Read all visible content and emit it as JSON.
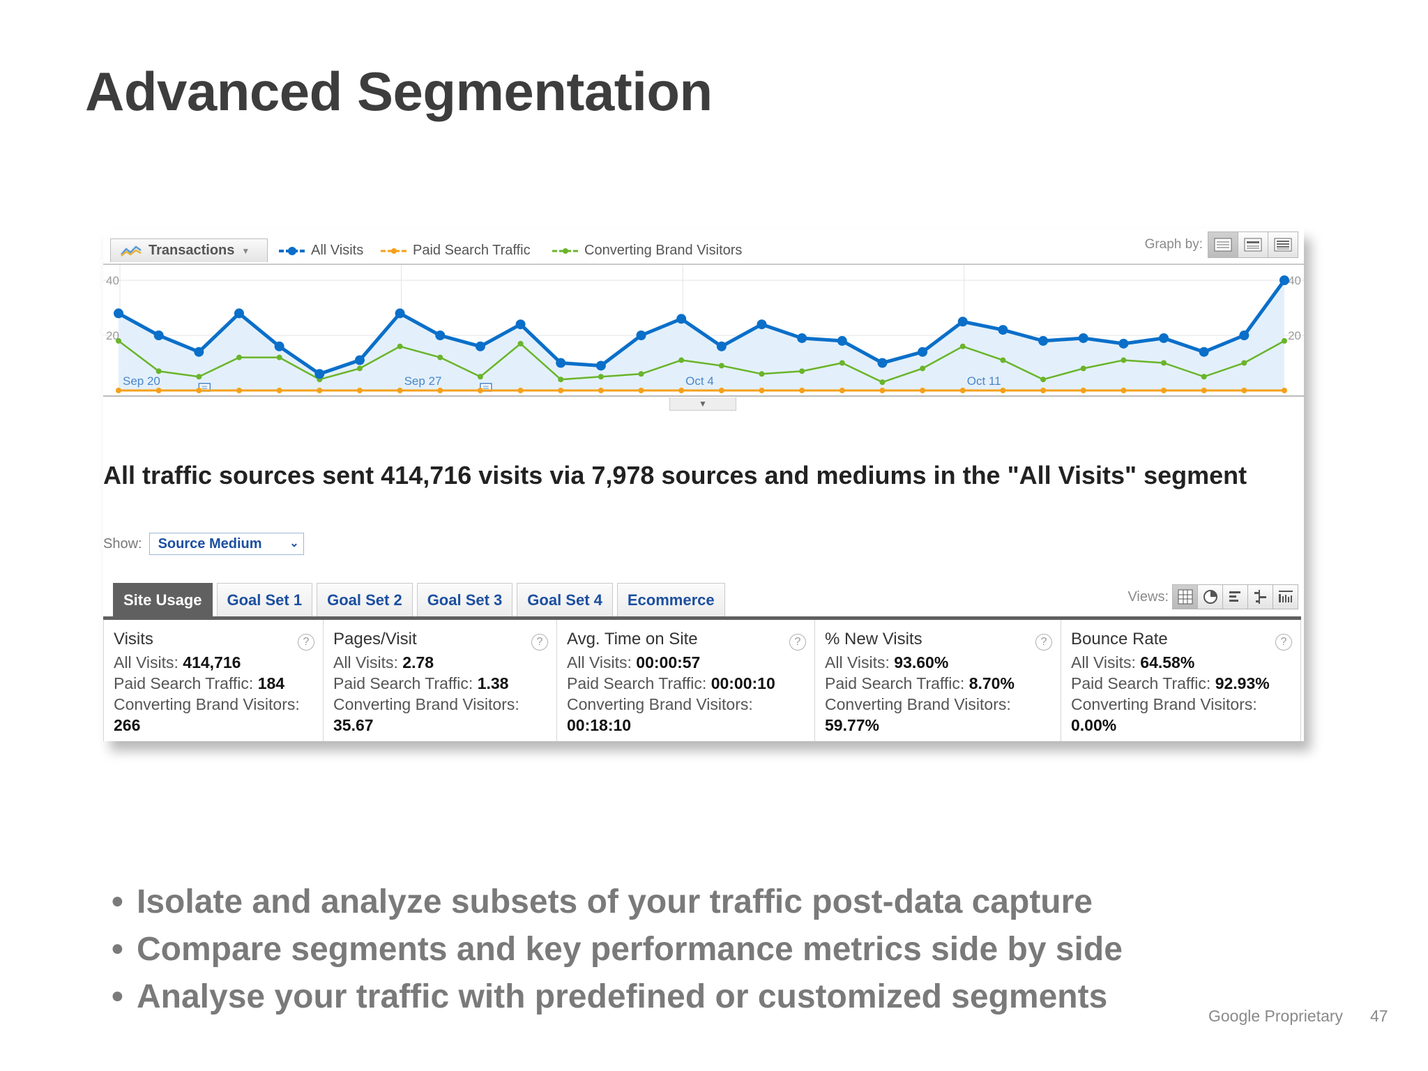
{
  "slide": {
    "title": "Advanced Segmentation",
    "bullets": [
      "Isolate and analyze subsets of your traffic post-data capture",
      "Compare segments and key performance metrics side by side",
      "Analyse your traffic with predefined or customized segments"
    ],
    "footer_label": "Google Proprietary",
    "page_number": "47"
  },
  "toolbar": {
    "metric": "Transactions",
    "legend": [
      {
        "name": "All Visits",
        "color": "#0a6fc9"
      },
      {
        "name": "Paid Search Traffic",
        "color": "#f5a01a"
      },
      {
        "name": "Converting Brand Visitors",
        "color": "#6ab42a"
      }
    ],
    "graph_by_label": "Graph by:"
  },
  "chart_data": {
    "type": "line",
    "x_tick_labels": [
      "Sep 20",
      "Sep 27",
      "Oct 4",
      "Oct 11"
    ],
    "y_tick_labels": [
      "40",
      "20"
    ],
    "ylim": [
      0,
      40
    ],
    "series": [
      {
        "name": "All Visits",
        "color": "#0a6fc9",
        "values": [
          28,
          20,
          14,
          28,
          16,
          6,
          11,
          28,
          20,
          16,
          24,
          10,
          9,
          20,
          26,
          16,
          24,
          19,
          18,
          10,
          14,
          25,
          22,
          18,
          19,
          17,
          19,
          14,
          20,
          40
        ]
      },
      {
        "name": "Paid Search Traffic",
        "color": "#f5a01a",
        "values": [
          0,
          0,
          0,
          0,
          0,
          0,
          0,
          0,
          0,
          0,
          0,
          0,
          0,
          0,
          0,
          0,
          0,
          0,
          0,
          0,
          0,
          0,
          0,
          0,
          0,
          0,
          0,
          0,
          0,
          0
        ]
      },
      {
        "name": "Converting Brand Visitors",
        "color": "#6ab42a",
        "values": [
          18,
          7,
          5,
          12,
          12,
          4,
          8,
          16,
          12,
          5,
          17,
          4,
          5,
          6,
          11,
          9,
          6,
          7,
          10,
          3,
          8,
          16,
          11,
          4,
          8,
          11,
          10,
          5,
          10,
          18
        ]
      }
    ]
  },
  "summary": {
    "text": "All traffic sources sent 414,716 visits via 7,978 sources and mediums in the \"All Visits\" segment"
  },
  "show": {
    "label": "Show:",
    "value": "Source Medium"
  },
  "tabs": [
    "Site Usage",
    "Goal Set 1",
    "Goal Set 2",
    "Goal Set 3",
    "Goal Set 4",
    "Ecommerce"
  ],
  "views_label": "Views:",
  "stats": [
    {
      "name": "Visits",
      "all_label": "All Visits:",
      "all": "414,716",
      "paid_label": "Paid Search Traffic:",
      "paid": "184",
      "conv_label": "Converting Brand Visitors:",
      "conv": "266"
    },
    {
      "name": "Pages/Visit",
      "all_label": "All Visits:",
      "all": "2.78",
      "paid_label": "Paid Search Traffic:",
      "paid": "1.38",
      "conv_label": "Converting Brand Visitors:",
      "conv": "35.67"
    },
    {
      "name": "Avg. Time on Site",
      "all_label": "All Visits:",
      "all": "00:00:57",
      "paid_label": "Paid Search Traffic:",
      "paid": "00:00:10",
      "conv_label": "Converting Brand Visitors:",
      "conv": "00:18:10"
    },
    {
      "name": "% New Visits",
      "all_label": "All Visits:",
      "all": "93.60%",
      "paid_label": "Paid Search Traffic:",
      "paid": "8.70%",
      "conv_label": "Converting Brand Visitors:",
      "conv": "59.77%"
    },
    {
      "name": "Bounce Rate",
      "all_label": "All Visits:",
      "all": "64.58%",
      "paid_label": "Paid Search Traffic:",
      "paid": "92.93%",
      "conv_label": "Converting Brand Visitors:",
      "conv": "0.00%"
    }
  ],
  "help_glyph": "?"
}
